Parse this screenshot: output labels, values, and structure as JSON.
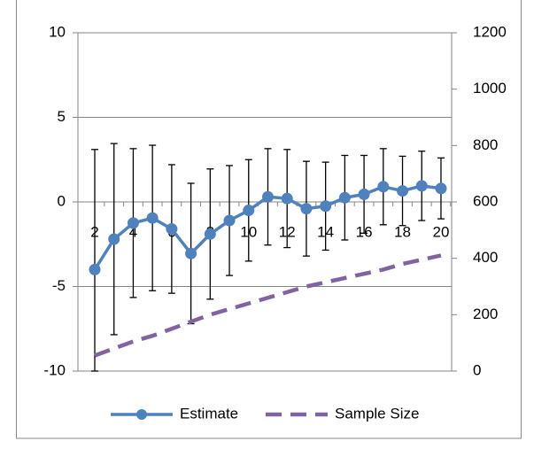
{
  "chart_data": {
    "type": "line",
    "categories": [
      "2",
      null,
      "4",
      null,
      "6",
      null,
      "8",
      null,
      "10",
      null,
      "12",
      null,
      "14",
      null,
      "16",
      null,
      "18",
      null,
      "20"
    ],
    "series": [
      {
        "name": "Estimate",
        "color": "#4f81bd",
        "style": "solid",
        "marker": true,
        "values": [
          -4.0,
          -2.2,
          -1.25,
          -0.95,
          -1.6,
          -3.05,
          -1.9,
          -1.1,
          -0.5,
          0.3,
          0.2,
          -0.4,
          -0.25,
          0.25,
          0.45,
          0.9,
          0.65,
          0.95,
          0.8
        ],
        "errors": [
          7.1,
          5.65,
          4.4,
          4.3,
          3.8,
          4.15,
          3.85,
          3.25,
          3.0,
          2.85,
          2.9,
          2.8,
          2.6,
          2.5,
          2.3,
          2.25,
          2.05,
          2.05,
          1.8
        ]
      },
      {
        "name": "Sample Size",
        "color": "#8064a2",
        "style": "dashed",
        "marker": false,
        "axis": "y2",
        "values": [
          55,
          80,
          105,
          125,
          150,
          175,
          200,
          220,
          240,
          260,
          280,
          300,
          315,
          330,
          345,
          360,
          380,
          395,
          410
        ]
      }
    ],
    "ylim": [
      -10,
      10
    ],
    "yticks": [
      -10,
      -5,
      0,
      5,
      10
    ],
    "y2lim": [
      0,
      1200
    ],
    "y2ticks": [
      0,
      200,
      400,
      600,
      800,
      1000,
      1200
    ],
    "grid": true,
    "legend": "bottom"
  }
}
